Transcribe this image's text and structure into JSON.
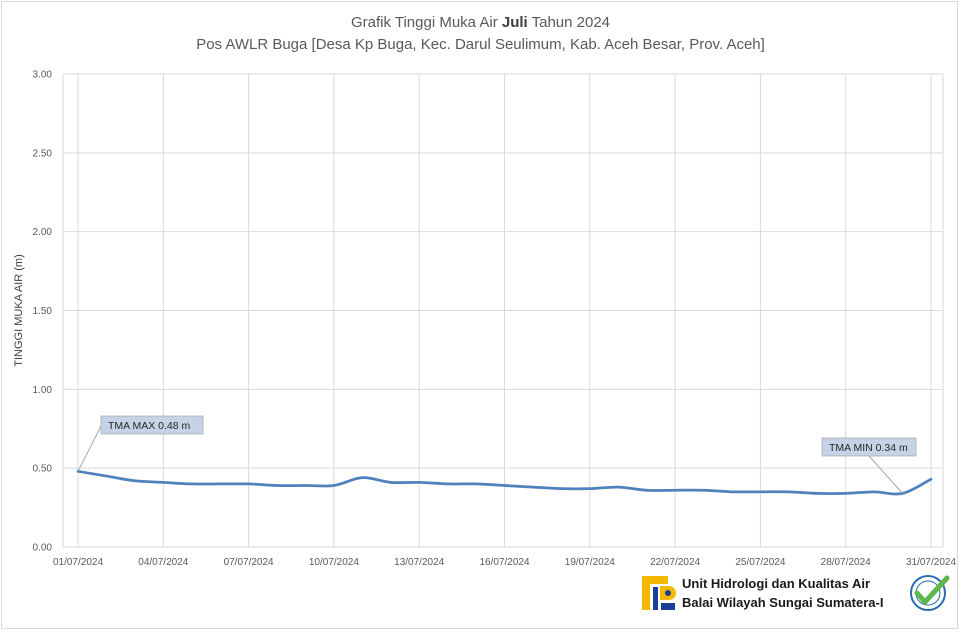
{
  "title": {
    "prefix": "Grafik Tinggi Muka Air ",
    "month": "Juli",
    "suffix": " Tahun 2024",
    "subtitle": "Pos AWLR Buga [Desa Kp Buga, Kec. Darul Seulimum, Kab. Aceh Besar, Prov. Aceh]"
  },
  "footer": {
    "line1": "Unit Hidrologi dan Kualitas Air",
    "line2": "Balai Wilayah Sungai Sumatera-I",
    "logo_icon": "pu-logo-icon",
    "badge_icon": "certified-badge-icon"
  },
  "colors": {
    "series": "#4f81bd",
    "grid": "#d9d9d9",
    "callout_fill": "#c6d3e6"
  },
  "chart_data": {
    "type": "line",
    "title": "Grafik Tinggi Muka Air Juli Tahun 2024",
    "subtitle": "Pos AWLR Buga [Desa Kp Buga, Kec. Darul Seulimum, Kab. Aceh Besar, Prov. Aceh]",
    "xlabel": "",
    "ylabel": "TINGGI MUKA AIR (m)",
    "ylim": [
      0,
      3.0
    ],
    "y_ticks": [
      "0.00",
      "0.50",
      "1.00",
      "1.50",
      "2.00",
      "2.50",
      "3.00"
    ],
    "x_tick_labels": [
      "01/07/2024",
      "04/07/2024",
      "07/07/2024",
      "10/07/2024",
      "13/07/2024",
      "16/07/2024",
      "19/07/2024",
      "22/07/2024",
      "25/07/2024",
      "28/07/2024",
      "31/07/2024"
    ],
    "grid": true,
    "legend": "none",
    "series": [
      {
        "x": [
          "01/07/2024",
          "02/07/2024",
          "03/07/2024",
          "04/07/2024",
          "05/07/2024",
          "06/07/2024",
          "07/07/2024",
          "08/07/2024",
          "09/07/2024",
          "10/07/2024",
          "11/07/2024",
          "12/07/2024",
          "13/07/2024",
          "14/07/2024",
          "15/07/2024",
          "16/07/2024",
          "17/07/2024",
          "18/07/2024",
          "19/07/2024",
          "20/07/2024",
          "21/07/2024",
          "22/07/2024",
          "23/07/2024",
          "24/07/2024",
          "25/07/2024",
          "26/07/2024",
          "27/07/2024",
          "28/07/2024",
          "29/07/2024",
          "30/07/2024",
          "31/07/2024"
        ],
        "values": [
          0.48,
          0.45,
          0.42,
          0.41,
          0.4,
          0.4,
          0.4,
          0.39,
          0.39,
          0.39,
          0.44,
          0.41,
          0.41,
          0.4,
          0.4,
          0.39,
          0.38,
          0.37,
          0.37,
          0.38,
          0.36,
          0.36,
          0.36,
          0.35,
          0.35,
          0.35,
          0.34,
          0.34,
          0.35,
          0.34,
          0.43
        ]
      }
    ],
    "annotations": [
      {
        "label": "TMA MAX",
        "value_text": "0.48",
        "unit": "m",
        "x": "01/07/2024",
        "y": 0.48
      },
      {
        "label": "TMA MIN",
        "value_text": "0.34",
        "unit": "m",
        "x": "30/07/2024",
        "y": 0.34
      }
    ]
  }
}
